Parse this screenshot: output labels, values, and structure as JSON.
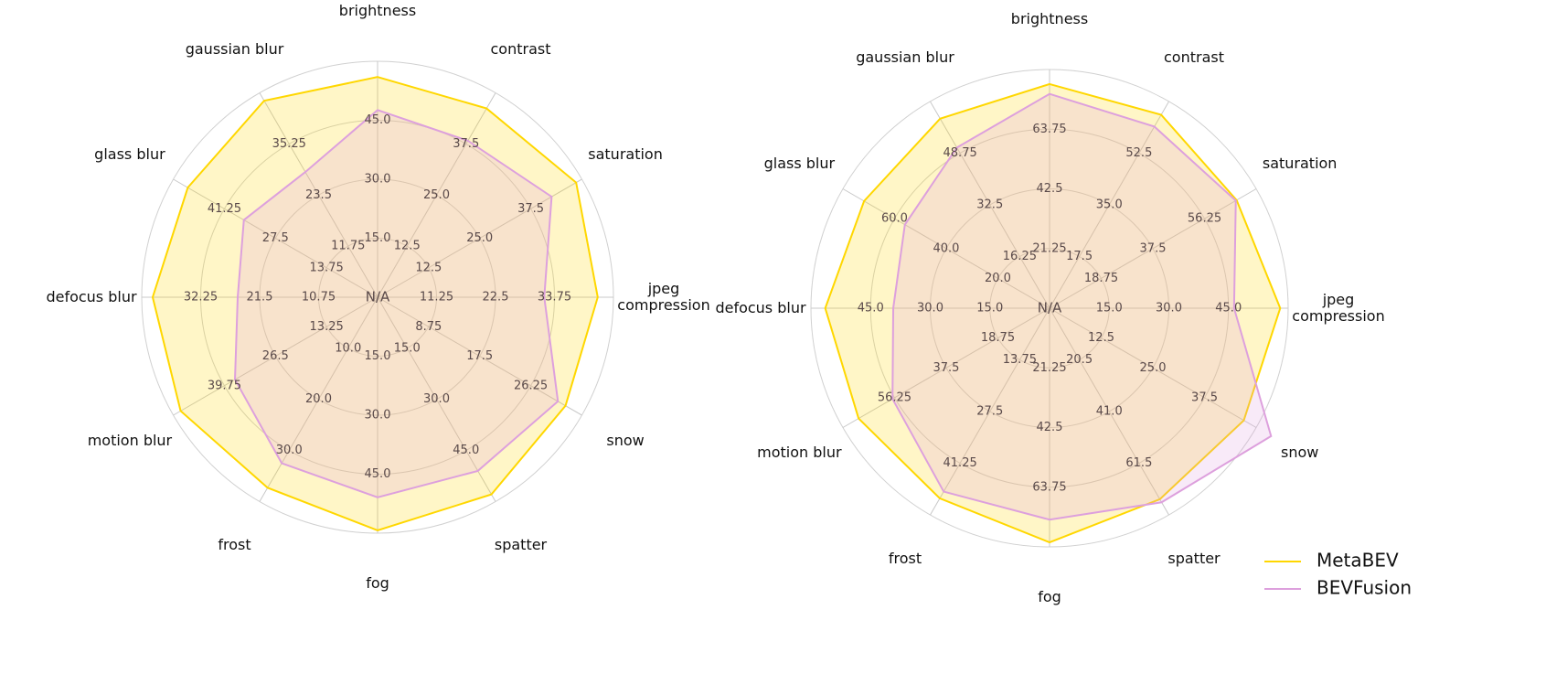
{
  "chart_data": [
    {
      "type": "radar",
      "center_label": "N/A",
      "categories": [
        "brightness",
        "contrast",
        "saturation",
        "jpeg\ncompression",
        "snow",
        "spatter",
        "fog",
        "frost",
        "motion blur",
        "defocus blur",
        "glass blur",
        "gaussian blur"
      ],
      "axis_lims": [
        [
          0,
          60
        ],
        [
          0,
          50
        ],
        [
          0,
          50
        ],
        [
          0,
          45
        ],
        [
          0,
          35
        ],
        [
          0,
          60
        ],
        [
          0,
          60
        ],
        [
          0,
          40
        ],
        [
          0,
          53
        ],
        [
          0,
          43
        ],
        [
          0,
          55
        ],
        [
          0,
          47
        ]
      ],
      "axis_ticks": [
        [
          {
            "value": 15,
            "label": "15.0"
          },
          {
            "value": 30,
            "label": "30.0"
          },
          {
            "value": 45,
            "label": "45.0"
          }
        ],
        [
          12.5,
          {
            "value": 25,
            "label": "25.0"
          },
          37.5
        ],
        [
          12.5,
          {
            "value": 25,
            "label": "25.0"
          },
          37.5
        ],
        [
          11.25,
          22.5,
          33.75
        ],
        [
          8.75,
          17.5,
          26.25
        ],
        [
          {
            "value": 15,
            "label": "15.0"
          },
          {
            "value": 30,
            "label": "30.0"
          },
          {
            "value": 45,
            "label": "45.0"
          }
        ],
        [
          {
            "value": 15,
            "label": "15.0"
          },
          {
            "value": 30,
            "label": "30.0"
          },
          {
            "value": 45,
            "label": "45.0"
          }
        ],
        [
          {
            "value": 10,
            "label": "10.0"
          },
          {
            "value": 20,
            "label": "20.0"
          },
          {
            "value": 30,
            "label": "30.0"
          }
        ],
        [
          13.25,
          26.5,
          39.75
        ],
        [
          10.75,
          21.5,
          32.25
        ],
        [
          13.75,
          27.5,
          41.25
        ],
        [
          11.75,
          23.5,
          35.25
        ]
      ],
      "series": [
        {
          "color": "#ffd700",
          "values": [
            56,
            46.2,
            48.6,
            42,
            32.2,
            57.9,
            59.3,
            37.3,
            51.1,
            41,
            51.1,
            45.2
          ]
        },
        {
          "color": "#dda0dd",
          "values": [
            47.6,
            38.3,
            42.6,
            31.8,
            30.9,
            51,
            50.9,
            32.5,
            37,
            25.5,
            36,
            28.8
          ]
        }
      ]
    },
    {
      "type": "radar",
      "center_label": "N/A",
      "legend": "lower right",
      "categories": [
        "brightness",
        "contrast",
        "saturation",
        "jpeg\ncompression",
        "snow",
        "spatter",
        "fog",
        "frost",
        "motion blur",
        "defocus blur",
        "glass blur",
        "gaussian blur"
      ],
      "axis_lims": [
        [
          0,
          85
        ],
        [
          0,
          70
        ],
        [
          0,
          75
        ],
        [
          0,
          60
        ],
        [
          0,
          50
        ],
        [
          0,
          82
        ],
        [
          0,
          85
        ],
        [
          0,
          55
        ],
        [
          0,
          75
        ],
        [
          0,
          60
        ],
        [
          0,
          80
        ],
        [
          0,
          65
        ]
      ],
      "axis_ticks": [
        [
          21.25,
          42.5,
          63.75
        ],
        [
          17.5,
          {
            "value": 35,
            "label": "35.0"
          },
          52.5
        ],
        [
          18.75,
          37.5,
          56.25
        ],
        [
          {
            "value": 15,
            "label": "15.0"
          },
          {
            "value": 30,
            "label": "30.0"
          },
          {
            "value": 45,
            "label": "45.0"
          }
        ],
        [
          12.5,
          {
            "value": 25,
            "label": "25.0"
          },
          37.5
        ],
        [
          20.5,
          {
            "value": 41,
            "label": "41.0"
          },
          61.5
        ],
        [
          21.25,
          42.5,
          63.75
        ],
        [
          13.75,
          27.5,
          41.25
        ],
        [
          18.75,
          37.5,
          56.25
        ],
        [
          {
            "value": 15,
            "label": "15.0"
          },
          {
            "value": 30,
            "label": "30.0"
          },
          {
            "value": 45,
            "label": "45.0"
          }
        ],
        [
          {
            "value": 20,
            "label": "20.0"
          },
          {
            "value": 40,
            "label": "40.0"
          },
          {
            "value": 60,
            "label": "60.0"
          }
        ],
        [
          16.25,
          32.5,
          48.75
        ]
      ],
      "series": [
        {
          "name": "MetaBEV",
          "color": "#ffd700",
          "values": [
            79.8,
            65.5,
            67.9,
            58,
            47,
            75.8,
            83.4,
            50.6,
            69.3,
            56.4,
            71.8,
            59.6
          ]
        },
        {
          "name": "BEVFusion",
          "color": "#dda0dd",
          "values": [
            76.3,
            61.5,
            67.6,
            46.4,
            53.6,
            77,
            75.3,
            48.8,
            57,
            39.3,
            56,
            50.5
          ]
        }
      ]
    }
  ]
}
